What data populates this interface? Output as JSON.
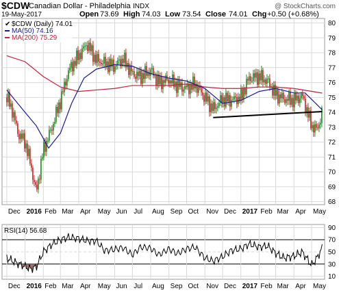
{
  "header": {
    "symbol": "$CDW",
    "name": "Canadian Dollar - Philadelphia",
    "exchange": "INDX",
    "watermark": "@ StockCharts.com",
    "date": "19-May-2017",
    "quote": {
      "open_label": "Open",
      "open": "73.69",
      "high_label": "High",
      "high": "74.03",
      "low_label": "Low",
      "low": "73.54",
      "close_label": "Close",
      "close": "74.01",
      "chg_label": "Chg",
      "chg": "+0.50 (+0.68%)"
    }
  },
  "colors": {
    "ma50": "#1a1a8c",
    "ma200": "#c0203a",
    "up": "#1a8a1a",
    "down": "#d02020",
    "rsi_line": "#000000",
    "rsi_fill_low": "#8a5a5a",
    "grid": "#d8d8d8"
  },
  "chart_data": [
    {
      "type": "line",
      "title": "$CDW (Daily) 74.01",
      "series": [
        {
          "name": "$CDW (Daily) 74.01",
          "style": "candlestick",
          "color": "#1a8a1a",
          "x": [
            "2015-12-01",
            "2015-12-10",
            "2015-12-20",
            "2016-01-01",
            "2016-01-10",
            "2016-01-20",
            "2016-02-01",
            "2016-02-15",
            "2016-03-01",
            "2016-03-15",
            "2016-04-01",
            "2016-04-15",
            "2016-05-01",
            "2016-05-15",
            "2016-06-01",
            "2016-06-15",
            "2016-07-01",
            "2016-07-15",
            "2016-08-01",
            "2016-08-15",
            "2016-09-01",
            "2016-09-15",
            "2016-10-01",
            "2016-10-15",
            "2016-11-01",
            "2016-11-15",
            "2016-12-01",
            "2016-12-15",
            "2017-01-01",
            "2017-01-15",
            "2017-02-01",
            "2017-02-15",
            "2017-03-01",
            "2017-03-15",
            "2017-04-01",
            "2017-04-15",
            "2017-05-01",
            "2017-05-10",
            "2017-05-19"
          ],
          "y": [
            75.0,
            74.2,
            72.6,
            72.0,
            70.6,
            68.6,
            71.5,
            72.9,
            74.8,
            76.8,
            77.8,
            78.6,
            77.5,
            77.3,
            77.1,
            77.6,
            76.6,
            76.4,
            76.8,
            76.0,
            76.2,
            75.8,
            75.6,
            75.9,
            75.0,
            74.2,
            74.9,
            74.8,
            75.0,
            76.3,
            76.4,
            76.1,
            75.2,
            74.9,
            74.8,
            75.1,
            73.1,
            72.8,
            74.01
          ]
        },
        {
          "name": "MA(50) 74.16",
          "color": "#1a1a8c",
          "x": [
            "2015-12-01",
            "2016-01-01",
            "2016-01-20",
            "2016-02-10",
            "2016-03-01",
            "2016-03-20",
            "2016-04-10",
            "2016-05-01",
            "2016-06-01",
            "2016-07-01",
            "2016-08-01",
            "2016-09-01",
            "2016-10-01",
            "2016-11-01",
            "2016-12-01",
            "2017-01-01",
            "2017-02-01",
            "2017-03-01",
            "2017-04-01",
            "2017-04-20",
            "2017-05-19"
          ],
          "y": [
            75.5,
            74.0,
            73.1,
            71.6,
            72.6,
            74.6,
            76.3,
            76.9,
            77.2,
            77.1,
            76.6,
            76.3,
            76.1,
            75.6,
            74.6,
            74.8,
            75.4,
            75.6,
            75.3,
            75.3,
            74.16
          ]
        },
        {
          "name": "MA(200) 75.29",
          "color": "#c0203a",
          "x": [
            "2015-12-01",
            "2016-01-01",
            "2016-02-01",
            "2016-03-01",
            "2016-04-01",
            "2016-05-01",
            "2016-06-01",
            "2016-07-01",
            "2016-08-01",
            "2016-09-01",
            "2016-10-01",
            "2016-11-01",
            "2016-12-01",
            "2017-01-01",
            "2017-02-01",
            "2017-03-01",
            "2017-04-01",
            "2017-05-19"
          ],
          "y": [
            77.8,
            77.4,
            76.4,
            75.7,
            75.4,
            75.5,
            75.6,
            75.8,
            75.8,
            75.8,
            75.9,
            75.7,
            75.6,
            75.6,
            75.7,
            75.7,
            75.6,
            75.29
          ]
        }
      ],
      "trendline": {
        "x": [
          "2016-11-15",
          "2017-05-19"
        ],
        "y": [
          73.65,
          74.05
        ]
      },
      "xlabels": [
        "Dec",
        "2016",
        "Feb",
        "Mar",
        "Apr",
        "May",
        "Jun",
        "Jul",
        "Aug",
        "Sep",
        "Oct",
        "Nov",
        "Dec",
        "2017",
        "Feb",
        "Mar",
        "Apr",
        "May"
      ],
      "ylabels": [
        "68",
        "69",
        "70",
        "71",
        "72",
        "73",
        "74",
        "75",
        "76",
        "77",
        "78",
        "79",
        "80"
      ],
      "ylim": [
        67.8,
        80.3
      ],
      "grid": true,
      "legend_position": "top-left"
    },
    {
      "type": "line",
      "title": "RSI(14) 56.68",
      "series": [
        {
          "name": "RSI(14) 56.68",
          "color": "#000000",
          "x": [
            "2015-12-01",
            "2015-12-15",
            "2016-01-01",
            "2016-01-10",
            "2016-01-20",
            "2016-02-01",
            "2016-02-15",
            "2016-03-01",
            "2016-03-15",
            "2016-04-01",
            "2016-04-15",
            "2016-05-01",
            "2016-05-15",
            "2016-06-01",
            "2016-06-15",
            "2016-07-01",
            "2016-07-15",
            "2016-08-01",
            "2016-08-15",
            "2016-09-01",
            "2016-09-15",
            "2016-10-01",
            "2016-10-15",
            "2016-11-01",
            "2016-11-15",
            "2016-12-01",
            "2016-12-15",
            "2017-01-01",
            "2017-01-15",
            "2017-02-01",
            "2017-02-15",
            "2017-03-01",
            "2017-03-15",
            "2017-04-01",
            "2017-04-15",
            "2017-05-01",
            "2017-05-10",
            "2017-05-19"
          ],
          "y": [
            40,
            33,
            26,
            22,
            25,
            50,
            62,
            70,
            74,
            72,
            68,
            68,
            52,
            54,
            57,
            45,
            58,
            56,
            45,
            55,
            47,
            55,
            58,
            40,
            35,
            42,
            52,
            55,
            63,
            58,
            60,
            48,
            40,
            43,
            50,
            28,
            40,
            56.68
          ]
        }
      ],
      "xlabels": [
        "Dec",
        "2016",
        "Feb",
        "Mar",
        "Apr",
        "May",
        "Jun",
        "Jul",
        "Aug",
        "Sep",
        "Oct",
        "Nov",
        "Dec",
        "2017",
        "Feb",
        "Mar",
        "Apr",
        "May"
      ],
      "ylabels": [
        "10",
        "30",
        "50",
        "70",
        "90"
      ],
      "reference_lines": [
        30,
        70
      ],
      "ylim": [
        5,
        95
      ],
      "grid": true,
      "legend_position": "top-left"
    }
  ]
}
